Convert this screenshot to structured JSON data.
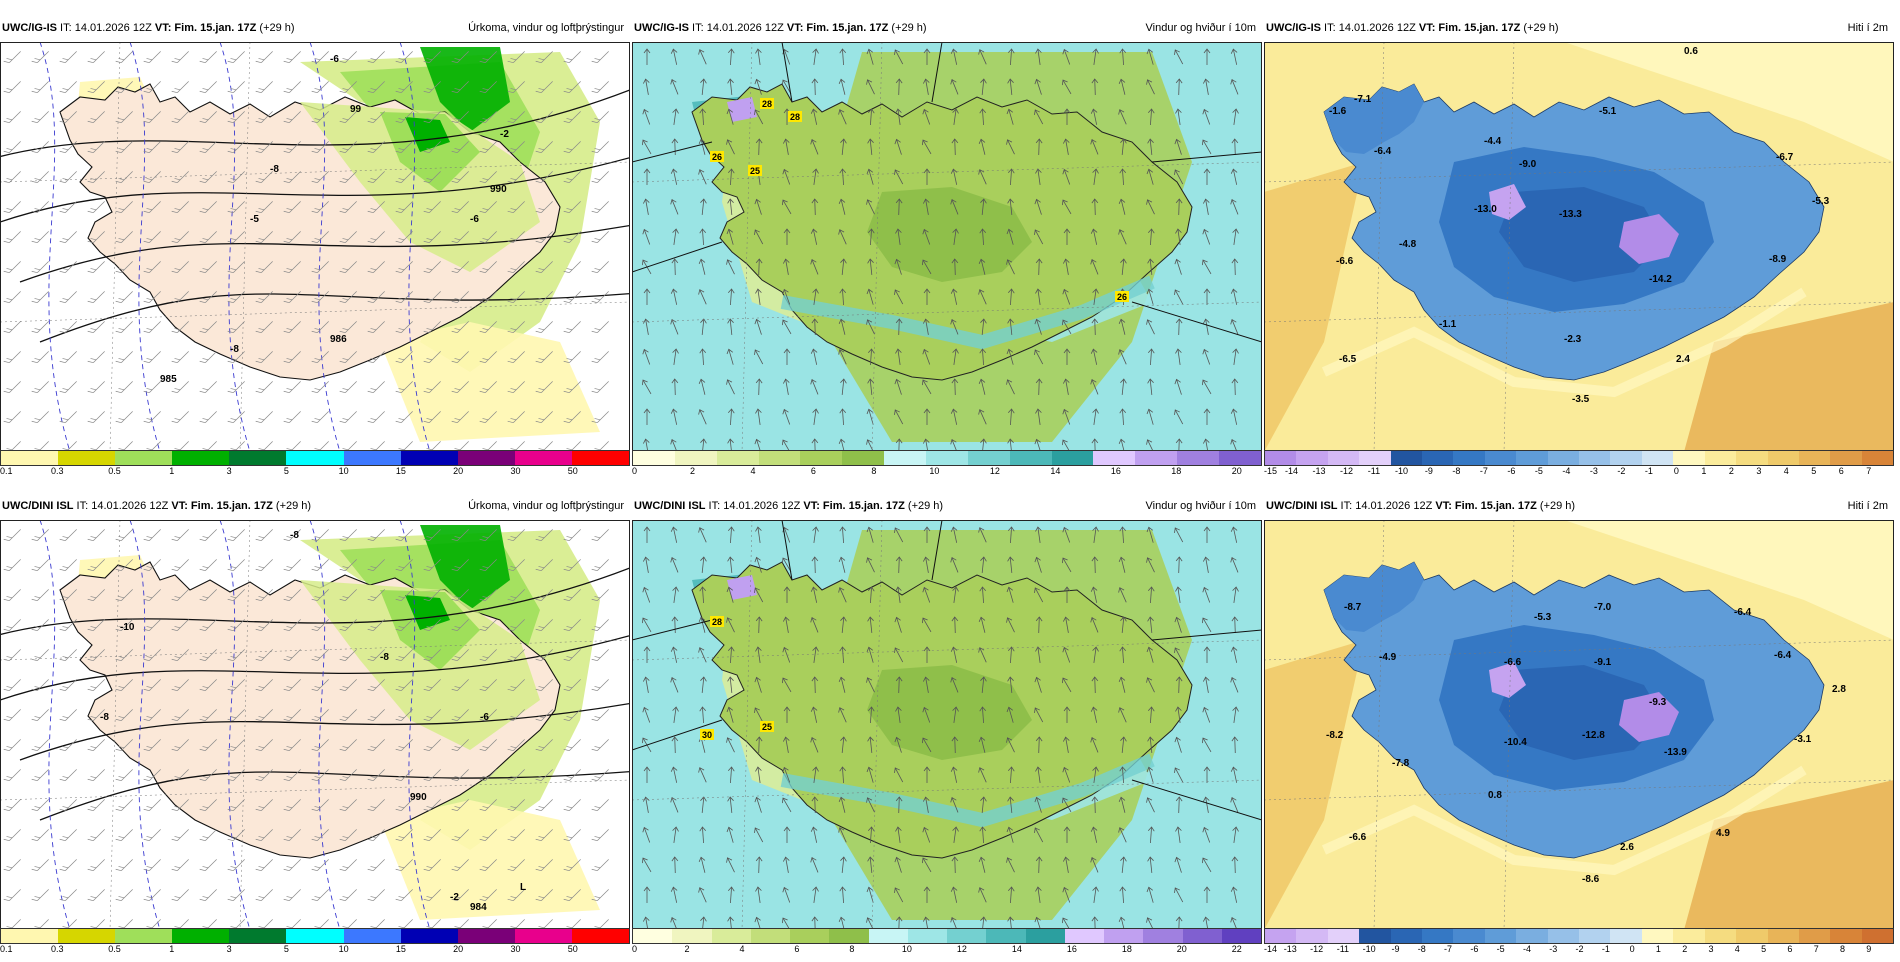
{
  "panels": [
    {
      "id": "igis-precip",
      "model": "UWC/IG-IS",
      "it": "IT: 14.01.2026 12Z",
      "vt": "VT: Fim. 15.jan. 17Z",
      "lead": "(+29 h)",
      "title": "Úrkoma, vindur og loftþrýstingur",
      "colorbar_colors": [
        "#fff7b0",
        "#d6d600",
        "#9fdf5a",
        "#00b000",
        "#007a2e",
        "#00ffff",
        "#3c78ff",
        "#0000b4",
        "#7a0078",
        "#e8008c",
        "#ff0000"
      ],
      "colorbar_ticks": [
        "0.1",
        "0.3",
        "0.5",
        "1",
        "3",
        "5",
        "10",
        "15",
        "20",
        "30",
        "50"
      ],
      "map_labels": [
        "-6",
        "-2",
        "-8",
        "-6",
        "-8",
        "-5",
        "990",
        "986",
        "985",
        "99"
      ]
    },
    {
      "id": "igis-wind",
      "model": "UWC/IG-IS",
      "it": "IT: 14.01.2026 12Z",
      "vt": "VT: Fim. 15.jan. 17Z",
      "lead": "(+29 h)",
      "title": "Vindur og hviður í 10m",
      "colorbar_colors": [
        "#ffffe0",
        "#f0f5c0",
        "#d9ec9a",
        "#c2de7a",
        "#a9cf5c",
        "#8fbf4a",
        "#c8f5f5",
        "#9ee6e6",
        "#74d0d0",
        "#4cb8b8",
        "#2b9f9f",
        "#e0c8ff",
        "#c0a0f0",
        "#a080e0",
        "#8060d0"
      ],
      "colorbar_ticks": [
        "0",
        "2",
        "4",
        "6",
        "8",
        "10",
        "12",
        "14",
        "16",
        "18",
        "20"
      ],
      "map_labels": [
        "28",
        "28",
        "26",
        "25",
        "26"
      ]
    },
    {
      "id": "igis-temp",
      "model": "UWC/IG-IS",
      "it": "IT: 14.01.2026 12Z",
      "vt": "VT: Fim. 15.jan. 17Z",
      "lead": "(+29 h)",
      "title": "Hiti í 2m",
      "colorbar_colors": [
        "#b28ce8",
        "#c5a3f0",
        "#d4b9f5",
        "#e3d0fa",
        "#2255a0",
        "#2a66b4",
        "#3578c4",
        "#4a8ad0",
        "#5f9cd8",
        "#7aaee0",
        "#96c0e8",
        "#b2d2ef",
        "#d0e4f4",
        "#fff8c0",
        "#fbec9c",
        "#f5dc80",
        "#efca6a",
        "#e8b458",
        "#e09c48",
        "#d88438"
      ],
      "colorbar_ticks": [
        "-15",
        "-14",
        "-13",
        "-12",
        "-11",
        "-10",
        "-9",
        "-8",
        "-7",
        "-6",
        "-5",
        "-4",
        "-3",
        "-2",
        "-1",
        "0",
        "1",
        "2",
        "3",
        "4",
        "5",
        "6",
        "7"
      ],
      "map_labels": [
        "0.6",
        "-7.1",
        "-1.6",
        "-6.4",
        "-4.4",
        "-5.1",
        "-9.0",
        "-6.7",
        "-13.0",
        "-13.3",
        "-5.3",
        "-4.8",
        "-6.6",
        "-14.2",
        "-8.9",
        "-1.1",
        "-2.3",
        "-6.5",
        "2.4",
        "-3.5"
      ]
    },
    {
      "id": "dini-precip",
      "model": "UWC/DINI ISL",
      "it": "IT: 14.01.2026 12Z",
      "vt": "VT: Fim. 15.jan. 17Z",
      "lead": "(+29 h)",
      "title": "Úrkoma, vindur og loftþrýstingur",
      "colorbar_colors": [
        "#fff7b0",
        "#d6d600",
        "#9fdf5a",
        "#00b000",
        "#007a2e",
        "#00ffff",
        "#3c78ff",
        "#0000b4",
        "#7a0078",
        "#e8008c",
        "#ff0000"
      ],
      "colorbar_ticks": [
        "0.1",
        "0.3",
        "0.5",
        "1",
        "3",
        "5",
        "10",
        "15",
        "20",
        "30",
        "50"
      ],
      "map_labels": [
        "-8",
        "-10",
        "-8",
        "-6",
        "-8",
        "-2",
        "990",
        "984",
        "L"
      ]
    },
    {
      "id": "dini-wind",
      "model": "UWC/DINI ISL",
      "it": "IT: 14.01.2026 12Z",
      "vt": "VT: Fim. 15.jan. 17Z",
      "lead": "(+29 h)",
      "title": "Vindur og hviður í 10m",
      "colorbar_colors": [
        "#ffffe0",
        "#f0f5c0",
        "#d9ec9a",
        "#c2de7a",
        "#a9cf5c",
        "#8fbf4a",
        "#c8f5f5",
        "#9ee6e6",
        "#74d0d0",
        "#4cb8b8",
        "#2b9f9f",
        "#e0c8ff",
        "#c0a0f0",
        "#a080e0",
        "#8060d0",
        "#6040c0"
      ],
      "colorbar_ticks": [
        "0",
        "2",
        "4",
        "6",
        "8",
        "10",
        "12",
        "14",
        "16",
        "18",
        "20",
        "22"
      ],
      "map_labels": [
        "28",
        "30",
        "25"
      ]
    },
    {
      "id": "dini-temp",
      "model": "UWC/DINI ISL",
      "it": "IT: 14.01.2026 12Z",
      "vt": "VT: Fim. 15.jan. 17Z",
      "lead": "(+29 h)",
      "title": "Hiti í 2m",
      "colorbar_colors": [
        "#c5a3f0",
        "#d4b9f5",
        "#e3d0fa",
        "#2255a0",
        "#2a66b4",
        "#3578c4",
        "#4a8ad0",
        "#5f9cd8",
        "#7aaee0",
        "#96c0e8",
        "#b2d2ef",
        "#d0e4f4",
        "#fff8c0",
        "#fbec9c",
        "#f5dc80",
        "#efca6a",
        "#e8b458",
        "#e09c48",
        "#d88438",
        "#cf7030"
      ],
      "colorbar_ticks": [
        "-14",
        "-13",
        "-12",
        "-11",
        "-10",
        "-9",
        "-8",
        "-7",
        "-6",
        "-5",
        "-4",
        "-3",
        "-2",
        "-1",
        "0",
        "1",
        "2",
        "3",
        "4",
        "5",
        "6",
        "7",
        "8",
        "9"
      ],
      "map_labels": [
        "-8.7",
        "-5.3",
        "-7.0",
        "-6.4",
        "-4.9",
        "-6.6",
        "-9.1",
        "-6.4",
        "-9.3",
        "2.8",
        "-8.2",
        "-10.4",
        "-12.8",
        "-3.1",
        "-7.8",
        "-13.9",
        "0.8",
        "-6.6",
        "2.6",
        "4.9",
        "-8.6"
      ]
    }
  ]
}
